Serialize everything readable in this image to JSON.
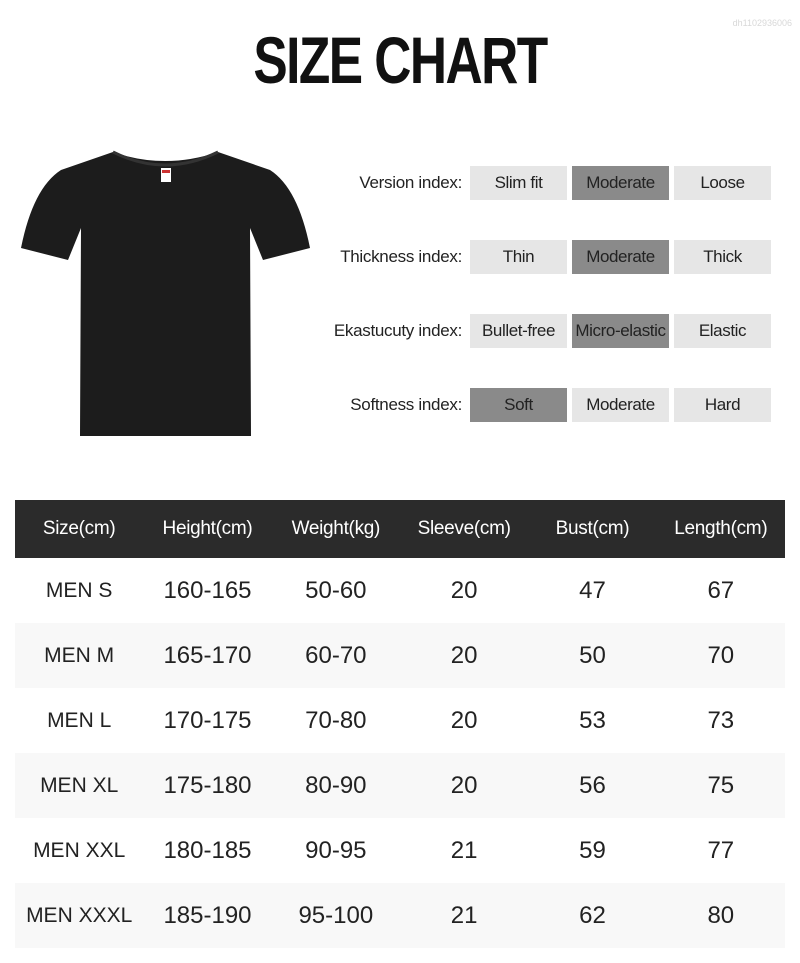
{
  "watermark": "dh1102936006",
  "title": "SIZE CHART",
  "accent_colors": {
    "header_bg": "#2b2b2b",
    "selected_option": "#8a8a8a",
    "unselected_option": "#e6e6e6"
  },
  "indices": [
    {
      "label": "Version index:",
      "options": [
        "Slim fit",
        "Moderate",
        "Loose"
      ],
      "selected": 1
    },
    {
      "label": "Thickness index:",
      "options": [
        "Thin",
        "Moderate",
        "Thick"
      ],
      "selected": 1
    },
    {
      "label": "Ekastucuty index:",
      "options": [
        "Bullet-free",
        "Micro-elastic",
        "Elastic"
      ],
      "selected": 1
    },
    {
      "label": "Softness index:",
      "options": [
        "Soft",
        "Moderate",
        "Hard"
      ],
      "selected": 0
    }
  ],
  "table": {
    "headers": [
      "Size(cm)",
      "Height(cm)",
      "Weight(kg)",
      "Sleeve(cm)",
      "Bust(cm)",
      "Length(cm)"
    ],
    "rows": [
      [
        "MEN S",
        "160-165",
        "50-60",
        "20",
        "47",
        "67"
      ],
      [
        "MEN M",
        "165-170",
        "60-70",
        "20",
        "50",
        "70"
      ],
      [
        "MEN L",
        "170-175",
        "70-80",
        "20",
        "53",
        "73"
      ],
      [
        "MEN XL",
        "175-180",
        "80-90",
        "20",
        "56",
        "75"
      ],
      [
        "MEN XXL",
        "180-185",
        "90-95",
        "21",
        "59",
        "77"
      ],
      [
        "MEN XXXL",
        "185-190",
        "95-100",
        "21",
        "62",
        "80"
      ]
    ]
  }
}
